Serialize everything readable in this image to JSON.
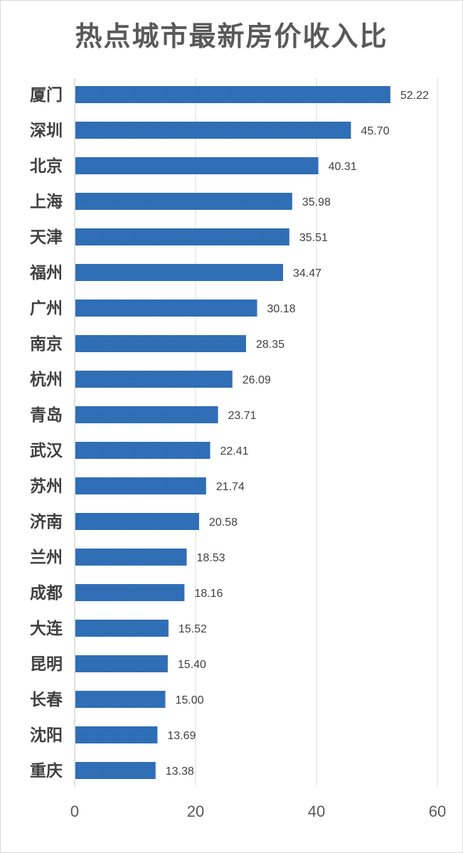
{
  "chart_data": {
    "type": "bar",
    "orientation": "horizontal",
    "title": "热点城市最新房价收入比",
    "xlabel": "",
    "ylabel": "",
    "categories": [
      "厦门",
      "深圳",
      "北京",
      "上海",
      "天津",
      "福州",
      "广州",
      "南京",
      "杭州",
      "青岛",
      "武汉",
      "苏州",
      "济南",
      "兰州",
      "成都",
      "大连",
      "昆明",
      "长春",
      "沈阳",
      "重庆"
    ],
    "values": [
      52.22,
      45.7,
      40.31,
      35.98,
      35.51,
      34.47,
      30.18,
      28.35,
      26.09,
      23.71,
      22.41,
      21.74,
      20.58,
      18.53,
      18.16,
      15.52,
      15.4,
      15.0,
      13.69,
      13.38
    ],
    "value_labels": [
      "52.22",
      "45.70",
      "40.31",
      "35.98",
      "35.51",
      "34.47",
      "30.18",
      "28.35",
      "26.09",
      "23.71",
      "22.41",
      "21.74",
      "20.58",
      "18.53",
      "18.16",
      "15.52",
      "15.40",
      "15.00",
      "13.69",
      "13.38"
    ],
    "xlim": [
      0,
      60
    ],
    "x_ticks": [
      "0",
      "20",
      "40",
      "60"
    ],
    "grid": "vertical",
    "legend": "none",
    "bar_color": "#2E6DB4"
  }
}
